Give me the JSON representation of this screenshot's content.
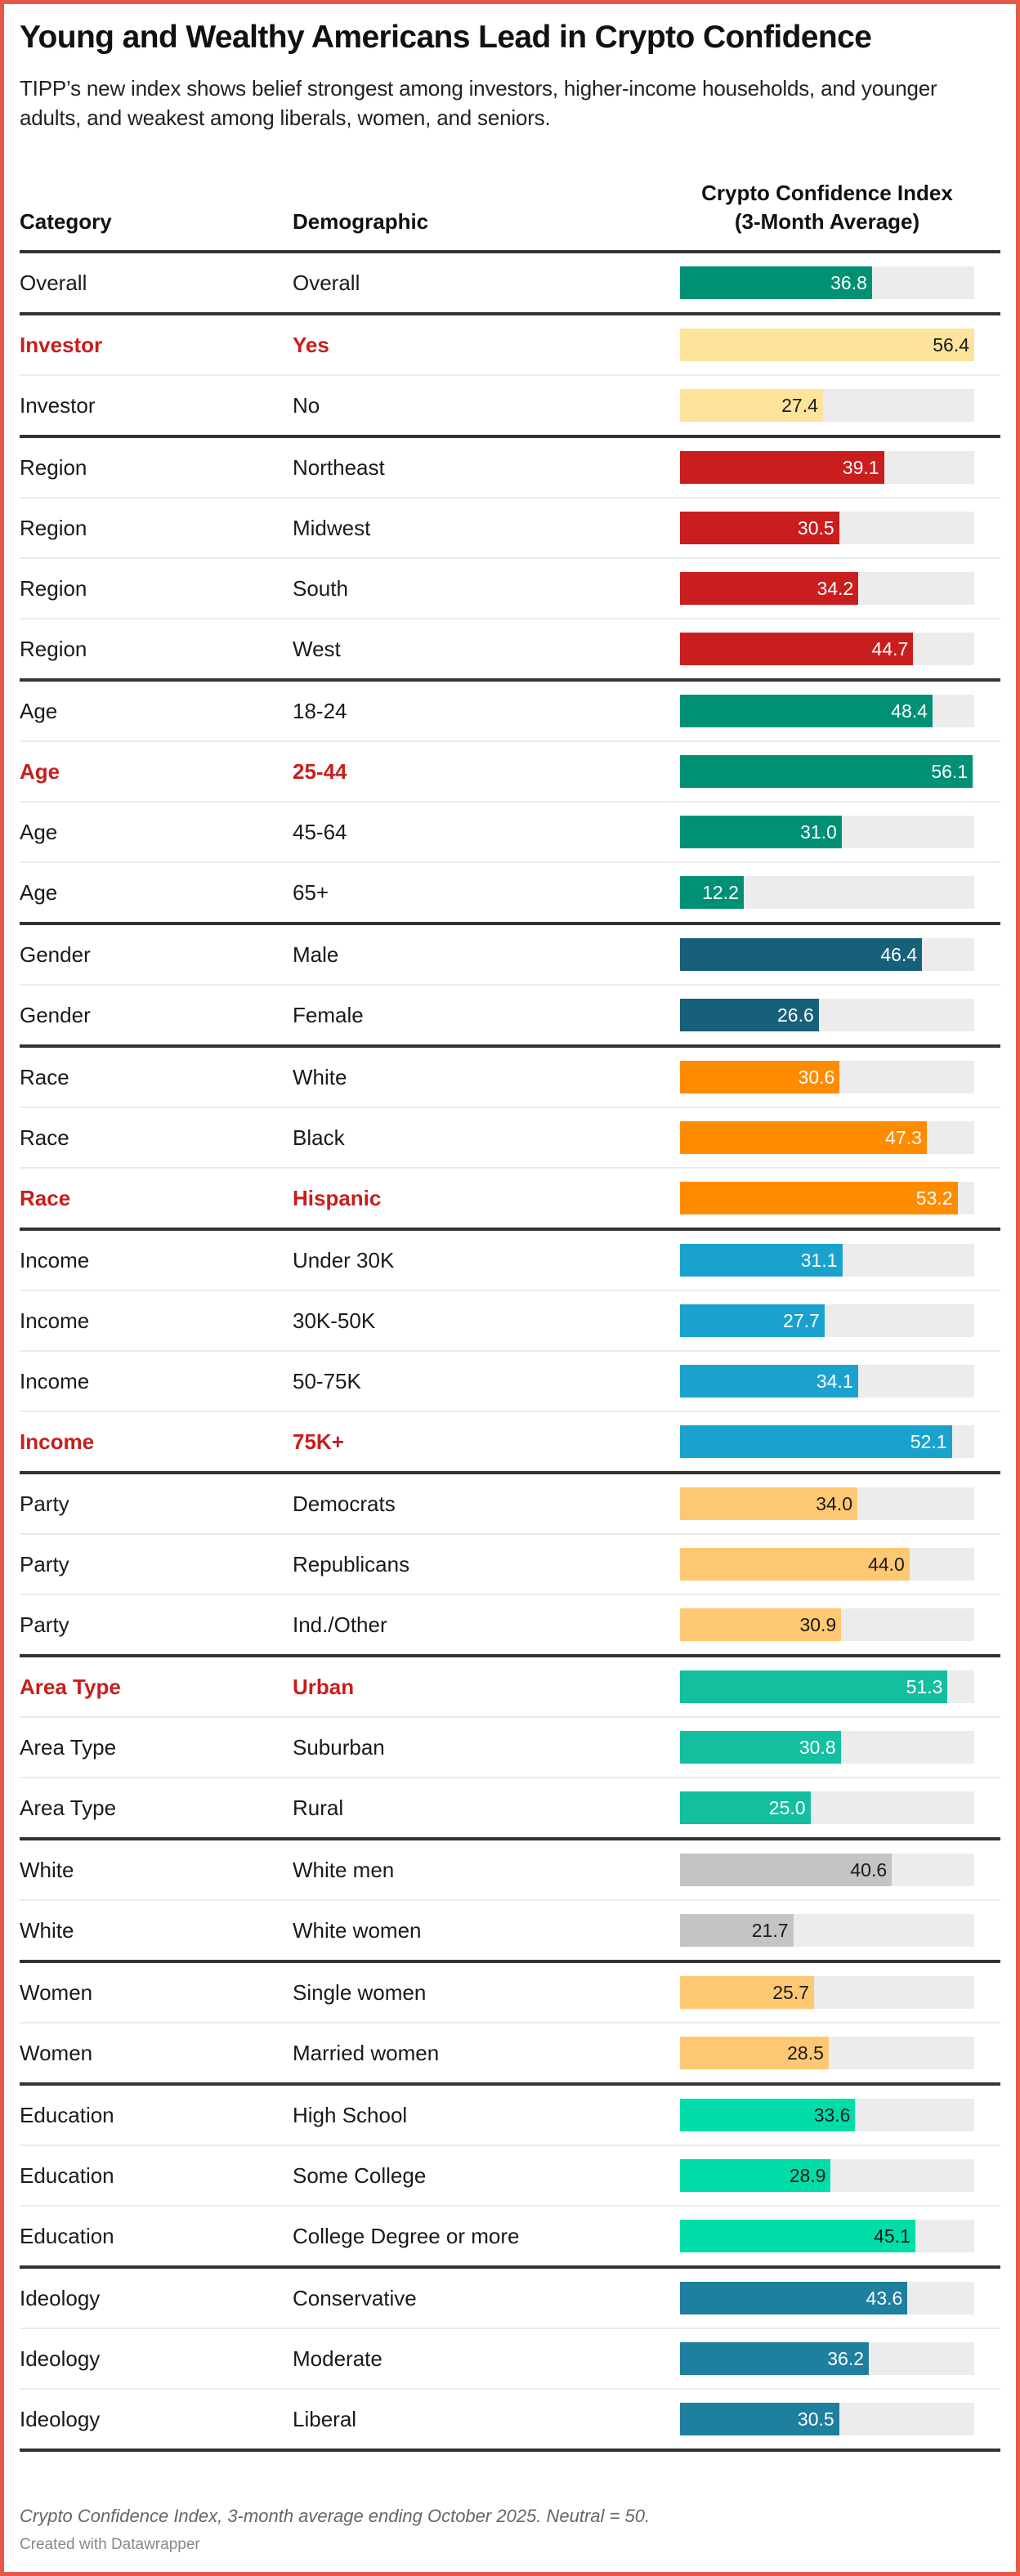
{
  "title": "Young and Wealthy Americans Lead in Crypto Confidence",
  "subtitle": "TIPP’s new index shows belief strongest among investors, higher-income households, and younger adults, and weakest among liberals, women, and seniors.",
  "headers": {
    "category": "Category",
    "demographic": "Demographic",
    "index_line1": "Crypto Confidence Index",
    "index_line2": "(3-Month Average)"
  },
  "footer": {
    "note": "Crypto Confidence Index, 3-month average ending October 2025. Neutral = 50.",
    "credit": "Created with Datawrapper"
  },
  "colors": {
    "highlight_text": "#c71e1d",
    "track": "#ececec",
    "Overall": "#009174",
    "Investor": "#fde39b",
    "Region": "#c91d1e",
    "Age": "#009174",
    "Gender": "#17607a",
    "Race": "#ff8b00",
    "Income": "#1aa2cf",
    "Party": "#fec873",
    "Area Type": "#14bf9f",
    "White": "#c4c4c4",
    "Women": "#fec873",
    "Education": "#00dda8",
    "Ideology": "#1e7f9f"
  },
  "chart_data": {
    "type": "table",
    "title": "Young and Wealthy Americans Lead in Crypto Confidence",
    "value_label": "Crypto Confidence Index (3-Month Average)",
    "xlim": [
      0,
      56.4
    ],
    "rows": [
      {
        "category": "Overall",
        "demographic": "Overall",
        "value": "36.8",
        "highlight": false
      },
      {
        "category": "Investor",
        "demographic": "Yes",
        "value": "56.4",
        "highlight": true
      },
      {
        "category": "Investor",
        "demographic": "No",
        "value": "27.4",
        "highlight": false
      },
      {
        "category": "Region",
        "demographic": "Northeast",
        "value": "39.1",
        "highlight": false
      },
      {
        "category": "Region",
        "demographic": "Midwest",
        "value": "30.5",
        "highlight": false
      },
      {
        "category": "Region",
        "demographic": "South",
        "value": "34.2",
        "highlight": false
      },
      {
        "category": "Region",
        "demographic": "West",
        "value": "44.7",
        "highlight": false
      },
      {
        "category": "Age",
        "demographic": "18-24",
        "value": "48.4",
        "highlight": false
      },
      {
        "category": "Age",
        "demographic": "25-44",
        "value": "56.1",
        "highlight": true
      },
      {
        "category": "Age",
        "demographic": "45-64",
        "value": "31.0",
        "highlight": false
      },
      {
        "category": "Age",
        "demographic": "65+",
        "value": "12.2",
        "highlight": false
      },
      {
        "category": "Gender",
        "demographic": "Male",
        "value": "46.4",
        "highlight": false
      },
      {
        "category": "Gender",
        "demographic": "Female",
        "value": "26.6",
        "highlight": false
      },
      {
        "category": "Race",
        "demographic": "White",
        "value": "30.6",
        "highlight": false
      },
      {
        "category": "Race",
        "demographic": "Black",
        "value": "47.3",
        "highlight": false
      },
      {
        "category": "Race",
        "demographic": "Hispanic",
        "value": "53.2",
        "highlight": true
      },
      {
        "category": "Income",
        "demographic": "Under 30K",
        "value": "31.1",
        "highlight": false
      },
      {
        "category": "Income",
        "demographic": "30K-50K",
        "value": "27.7",
        "highlight": false
      },
      {
        "category": "Income",
        "demographic": "50-75K",
        "value": "34.1",
        "highlight": false
      },
      {
        "category": "Income",
        "demographic": "75K+",
        "value": "52.1",
        "highlight": true
      },
      {
        "category": "Party",
        "demographic": "Democrats",
        "value": "34.0",
        "highlight": false
      },
      {
        "category": "Party",
        "demographic": "Republicans",
        "value": "44.0",
        "highlight": false
      },
      {
        "category": "Party",
        "demographic": "Ind./Other",
        "value": "30.9",
        "highlight": false
      },
      {
        "category": "Area Type",
        "demographic": "Urban",
        "value": "51.3",
        "highlight": true
      },
      {
        "category": "Area Type",
        "demographic": "Suburban",
        "value": "30.8",
        "highlight": false
      },
      {
        "category": "Area Type",
        "demographic": "Rural",
        "value": "25.0",
        "highlight": false
      },
      {
        "category": "White",
        "demographic": "White men",
        "value": "40.6",
        "highlight": false
      },
      {
        "category": "White",
        "demographic": "White women",
        "value": "21.7",
        "highlight": false
      },
      {
        "category": "Women",
        "demographic": "Single women",
        "value": "25.7",
        "highlight": false
      },
      {
        "category": "Women",
        "demographic": "Married women",
        "value": "28.5",
        "highlight": false
      },
      {
        "category": "Education",
        "demographic": "High School",
        "value": "33.6",
        "highlight": false
      },
      {
        "category": "Education",
        "demographic": "Some College",
        "value": "28.9",
        "highlight": false
      },
      {
        "category": "Education",
        "demographic": "College Degree or more",
        "value": "45.1",
        "highlight": false
      },
      {
        "category": "Ideology",
        "demographic": "Conservative",
        "value": "43.6",
        "highlight": false
      },
      {
        "category": "Ideology",
        "demographic": "Moderate",
        "value": "36.2",
        "highlight": false
      },
      {
        "category": "Ideology",
        "demographic": "Liberal",
        "value": "30.5",
        "highlight": false
      }
    ]
  }
}
